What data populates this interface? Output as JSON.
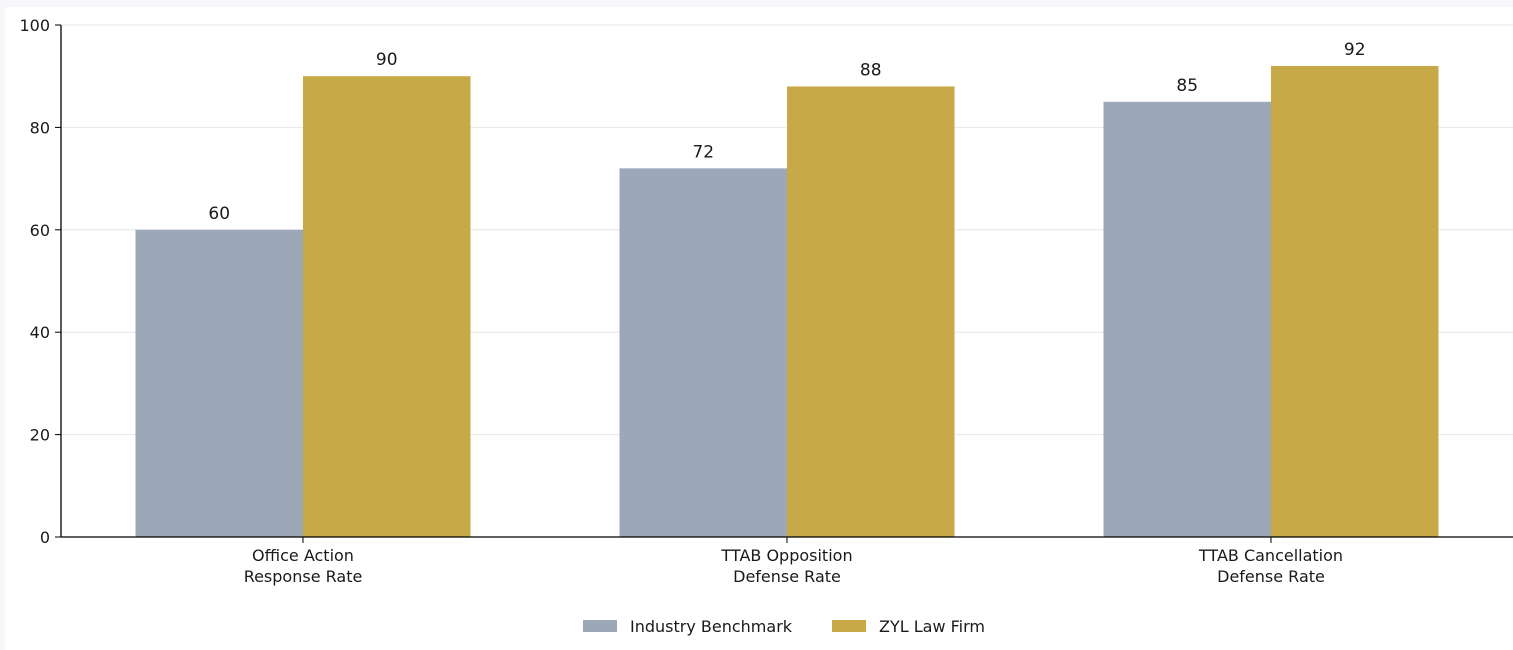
{
  "chart_data": {
    "type": "bar",
    "title": "",
    "xlabel": "",
    "ylabel": "",
    "ylim": [
      0,
      100
    ],
    "yticks": [
      0,
      20,
      40,
      60,
      80,
      100
    ],
    "grid": true,
    "legend_position": "bottom-center",
    "categories": [
      [
        "Office Action",
        "Response Rate"
      ],
      [
        "TTAB Opposition",
        "Defense Rate"
      ],
      [
        "TTAB Cancellation",
        "Defense Rate"
      ]
    ],
    "series": [
      {
        "name": "Industry Benchmark",
        "color": "#9ca8b8",
        "values": [
          60,
          72,
          85
        ]
      },
      {
        "name": "ZYL Law Firm",
        "color": "#c8a947",
        "values": [
          90,
          88,
          92
        ]
      }
    ]
  }
}
